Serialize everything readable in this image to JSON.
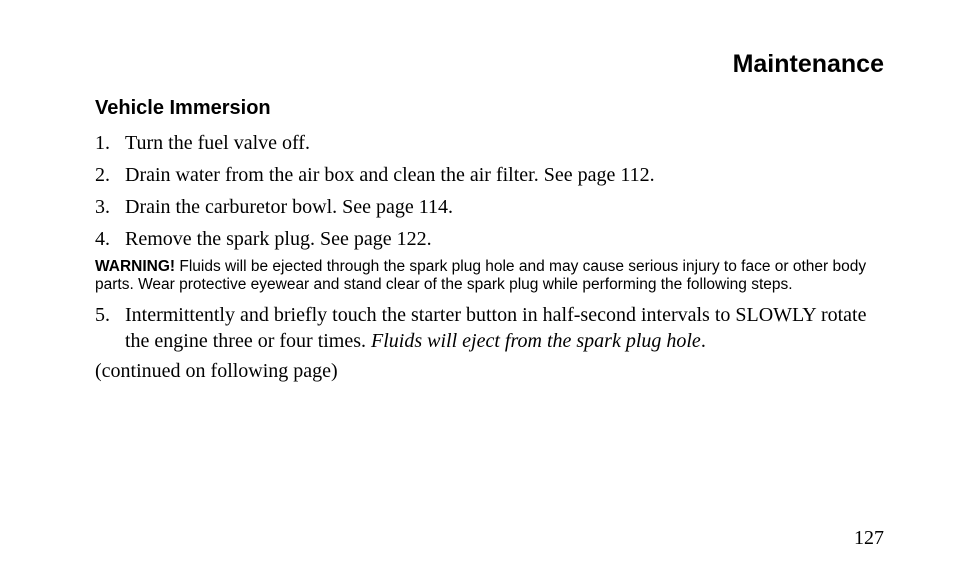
{
  "chapter_title": "Maintenance",
  "section_title": "Vehicle Immersion",
  "steps": [
    {
      "num": "1.",
      "text": "Turn the fuel valve off."
    },
    {
      "num": "2.",
      "text": "Drain water from the air box and clean the air filter. See page 112."
    },
    {
      "num": "3.",
      "text": "Drain the carburetor bowl. See page 114."
    },
    {
      "num": "4.",
      "text": "Remove the spark plug. See page 122."
    }
  ],
  "warning": {
    "label": "WARNING!",
    "text": "  Fluids will be ejected through the spark plug hole and may cause serious injury to face or other body parts. Wear protective eyewear and stand clear of the spark plug while performing the following steps."
  },
  "step5": {
    "num": "5.",
    "text_part1": "Intermittently and briefly touch the starter button in half-second intervals to SLOWLY rotate the engine three or four times. ",
    "text_italic": "Fluids will eject from the spark plug hole",
    "text_part2": "."
  },
  "continued": "(continued on following page)",
  "page_number": "127",
  "colors": {
    "background": "#ffffff",
    "text": "#000000"
  },
  "fonts": {
    "body": "Times New Roman",
    "headings": "Arial",
    "body_size_pt": 20,
    "warning_size_pt": 15.5,
    "chapter_title_size_pt": 25,
    "section_title_size_pt": 20
  }
}
